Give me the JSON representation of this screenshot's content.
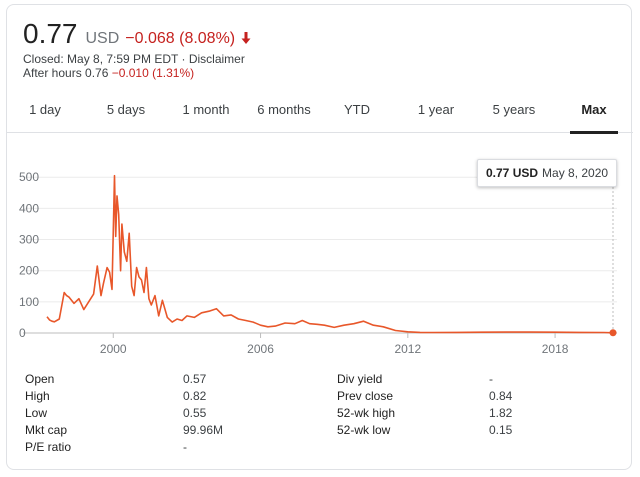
{
  "header": {
    "price": "0.77",
    "currency": "USD",
    "change": "−0.068 (8.08%)",
    "closed_text": "Closed: May 8, 7:59 PM EDT · ",
    "disclaimer": "Disclaimer",
    "after_hours_label": "After hours 0.76 ",
    "after_hours_change": "−0.010 (1.31%)"
  },
  "tabs": [
    {
      "label": "1 day"
    },
    {
      "label": "5 days"
    },
    {
      "label": "1 month"
    },
    {
      "label": "6 months"
    },
    {
      "label": "YTD"
    },
    {
      "label": "1 year"
    },
    {
      "label": "5 years"
    },
    {
      "label": "Max"
    }
  ],
  "active_tab": "Max",
  "tooltip": {
    "price": "0.77 USD",
    "date": "May 8, 2020"
  },
  "colors": {
    "line": "#e8572a",
    "negative": "#c5221f",
    "grid": "#ebebeb"
  },
  "chart_data": {
    "type": "line",
    "title": "",
    "xlabel": "",
    "ylabel": "",
    "ylim": [
      0,
      520
    ],
    "xlim": [
      1997.3,
      2020.36
    ],
    "y_ticks": [
      "500",
      "400",
      "300",
      "200",
      "100",
      "0"
    ],
    "x_ticks": [
      "2000",
      "2006",
      "2012",
      "2018"
    ],
    "grid": true,
    "series": [
      {
        "x": [
          1997.3,
          1997.4,
          1997.5,
          1997.6,
          1997.8,
          1998.0,
          1998.1,
          1998.2,
          1998.4,
          1998.6,
          1998.8,
          1999.0,
          1999.2,
          1999.35,
          1999.5,
          1999.6,
          1999.75,
          1999.85,
          1999.95,
          2000.05,
          2000.1,
          2000.15,
          2000.22,
          2000.3,
          2000.35,
          2000.45,
          2000.55,
          2000.65,
          2000.75,
          2000.85,
          2000.95,
          2001.05,
          2001.15,
          2001.25,
          2001.35,
          2001.45,
          2001.55,
          2001.7,
          2001.85,
          2002.0,
          2002.2,
          2002.4,
          2002.6,
          2002.8,
          2003.0,
          2003.3,
          2003.6,
          2003.9,
          2004.2,
          2004.5,
          2004.8,
          2005.1,
          2005.4,
          2005.7,
          2006.0,
          2006.3,
          2006.6,
          2007.0,
          2007.4,
          2007.7,
          2008.0,
          2008.3,
          2008.6,
          2009.0,
          2009.4,
          2009.8,
          2010.2,
          2010.6,
          2011.0,
          2011.5,
          2012.0,
          2012.5,
          2013.0,
          2014.0,
          2015.0,
          2016.0,
          2017.0,
          2018.0,
          2019.0,
          2020.0,
          2020.36
        ],
        "y": [
          52,
          42,
          38,
          36,
          45,
          130,
          120,
          115,
          95,
          110,
          75,
          100,
          125,
          215,
          120,
          160,
          210,
          195,
          140,
          505,
          310,
          440,
          380,
          200,
          350,
          260,
          230,
          320,
          150,
          120,
          210,
          180,
          170,
          130,
          210,
          110,
          90,
          120,
          55,
          105,
          50,
          35,
          45,
          40,
          55,
          50,
          65,
          70,
          78,
          55,
          58,
          45,
          40,
          35,
          25,
          20,
          22,
          32,
          30,
          40,
          30,
          28,
          25,
          18,
          25,
          30,
          38,
          25,
          20,
          8,
          4,
          2,
          1.5,
          2,
          2.5,
          3,
          3,
          2.5,
          2,
          1.5,
          0.77
        ]
      }
    ]
  },
  "stats": {
    "left": [
      {
        "label": "Open",
        "value": "0.57"
      },
      {
        "label": "High",
        "value": "0.82"
      },
      {
        "label": "Low",
        "value": "0.55"
      },
      {
        "label": "Mkt cap",
        "value": "99.96M"
      },
      {
        "label": "P/E ratio",
        "value": "-"
      }
    ],
    "right": [
      {
        "label": "Div yield",
        "value": "-"
      },
      {
        "label": "Prev close",
        "value": "0.84"
      },
      {
        "label": "52-wk high",
        "value": "1.82"
      },
      {
        "label": "52-wk low",
        "value": "0.15"
      }
    ]
  }
}
